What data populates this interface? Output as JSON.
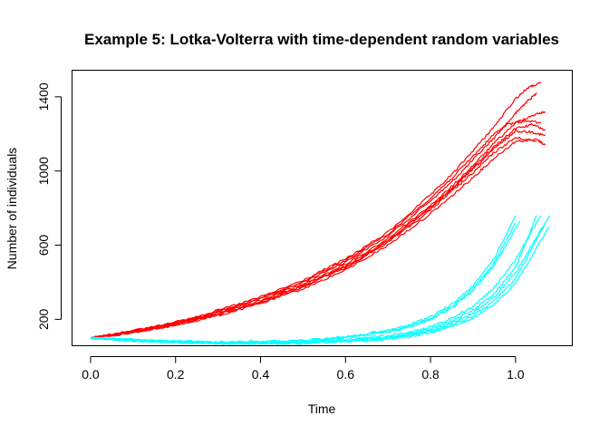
{
  "chart_data": {
    "type": "line",
    "title": "Example 5: Lotka-Volterra with time-dependent random variables",
    "xlabel": "Time",
    "ylabel": "Number of individuals",
    "xlim": [
      -0.0436,
      1.1336
    ],
    "ylim": [
      57.6,
      1543.4
    ],
    "xticks": [
      0.0,
      0.2,
      0.4,
      0.6,
      0.8,
      1.0
    ],
    "xtick_labels": [
      "0.0",
      "0.2",
      "0.4",
      "0.6",
      "0.8",
      "1.0"
    ],
    "yticks": [
      200,
      600,
      1000,
      1400
    ],
    "ytick_labels": [
      "200",
      "600",
      "1000",
      "1400"
    ],
    "grid": false,
    "legend": "none",
    "series_colors": {
      "prey": "#FF0000",
      "predator": "#00FFFF"
    },
    "series": [
      {
        "group": "prey",
        "x": [
          0,
          0.1,
          0.2,
          0.3,
          0.4,
          0.5,
          0.6,
          0.7,
          0.8,
          0.85,
          0.9,
          0.95,
          1.0,
          1.02,
          1.05
        ],
        "y": [
          100,
          135,
          180,
          240,
          310,
          400,
          510,
          650,
          840,
          940,
          1060,
          1180,
          1310,
          1360,
          1420
        ]
      },
      {
        "group": "prey",
        "x": [
          0,
          0.1,
          0.2,
          0.3,
          0.4,
          0.5,
          0.6,
          0.7,
          0.8,
          0.85,
          0.9,
          0.95,
          1.0,
          1.05
        ],
        "y": [
          100,
          130,
          170,
          225,
          290,
          375,
          480,
          615,
          790,
          890,
          990,
          1100,
          1180,
          1160
        ]
      },
      {
        "group": "prey",
        "x": [
          0,
          0.1,
          0.2,
          0.3,
          0.4,
          0.5,
          0.6,
          0.7,
          0.8,
          0.85,
          0.9,
          0.95,
          1.0,
          1.05,
          1.07
        ],
        "y": [
          100,
          128,
          168,
          220,
          285,
          365,
          465,
          600,
          770,
          865,
          965,
          1070,
          1160,
          1170,
          1140
        ]
      },
      {
        "group": "prey",
        "x": [
          0,
          0.1,
          0.2,
          0.3,
          0.4,
          0.5,
          0.6,
          0.7,
          0.8,
          0.85,
          0.9,
          0.95,
          1.0,
          1.03,
          1.06
        ],
        "y": [
          100,
          138,
          185,
          248,
          320,
          410,
          525,
          670,
          870,
          980,
          1110,
          1240,
          1390,
          1450,
          1475
        ]
      },
      {
        "group": "prey",
        "x": [
          0,
          0.1,
          0.2,
          0.3,
          0.4,
          0.5,
          0.6,
          0.7,
          0.8,
          0.85,
          0.9,
          0.95,
          1.0,
          1.04,
          1.07
        ],
        "y": [
          100,
          133,
          176,
          235,
          302,
          390,
          495,
          635,
          815,
          915,
          1030,
          1150,
          1260,
          1300,
          1320
        ]
      },
      {
        "group": "prey",
        "x": [
          0,
          0.1,
          0.2,
          0.3,
          0.4,
          0.5,
          0.6,
          0.7,
          0.8,
          0.85,
          0.9,
          0.95,
          1.0,
          1.04,
          1.07
        ],
        "y": [
          100,
          131,
          173,
          230,
          296,
          382,
          488,
          625,
          805,
          900,
          1010,
          1120,
          1215,
          1210,
          1190
        ]
      },
      {
        "group": "prey",
        "x": [
          0,
          0.1,
          0.2,
          0.3,
          0.4,
          0.5,
          0.6,
          0.7,
          0.8,
          0.85,
          0.9,
          0.95,
          0.98,
          1.02,
          1.06
        ],
        "y": [
          100,
          137,
          182,
          244,
          315,
          405,
          518,
          660,
          855,
          960,
          1080,
          1200,
          1250,
          1270,
          1260
        ]
      },
      {
        "group": "prey",
        "x": [
          0,
          0.1,
          0.2,
          0.3,
          0.4,
          0.5,
          0.6,
          0.7,
          0.8,
          0.85,
          0.9,
          0.95,
          1.0,
          1.04,
          1.07
        ],
        "y": [
          100,
          129,
          172,
          228,
          293,
          378,
          482,
          620,
          800,
          905,
          1020,
          1130,
          1230,
          1250,
          1220
        ]
      },
      {
        "group": "predator",
        "x": [
          0,
          0.1,
          0.2,
          0.3,
          0.4,
          0.5,
          0.6,
          0.7,
          0.75,
          0.8,
          0.85,
          0.9,
          0.95,
          1.0
        ],
        "y": [
          100,
          90,
          82,
          78,
          80,
          88,
          105,
          140,
          170,
          215,
          280,
          380,
          530,
          760
        ]
      },
      {
        "group": "predator",
        "x": [
          0,
          0.1,
          0.2,
          0.3,
          0.4,
          0.5,
          0.6,
          0.7,
          0.75,
          0.8,
          0.85,
          0.9,
          0.95,
          1.01
        ],
        "y": [
          100,
          88,
          80,
          76,
          77,
          84,
          100,
          130,
          160,
          200,
          262,
          355,
          490,
          730
        ]
      },
      {
        "group": "predator",
        "x": [
          0,
          0.1,
          0.2,
          0.3,
          0.4,
          0.5,
          0.6,
          0.7,
          0.75,
          0.8,
          0.85,
          0.9,
          0.95,
          1.0,
          1.05
        ],
        "y": [
          100,
          87,
          78,
          73,
          72,
          76,
          86,
          105,
          122,
          150,
          190,
          250,
          340,
          480,
          760
        ]
      },
      {
        "group": "predator",
        "x": [
          0,
          0.1,
          0.2,
          0.3,
          0.4,
          0.5,
          0.6,
          0.7,
          0.75,
          0.8,
          0.85,
          0.9,
          0.95,
          1.0,
          1.08
        ],
        "y": [
          100,
          86,
          77,
          72,
          70,
          73,
          82,
          98,
          112,
          135,
          170,
          220,
          300,
          420,
          760
        ]
      },
      {
        "group": "predator",
        "x": [
          0,
          0.1,
          0.2,
          0.3,
          0.4,
          0.5,
          0.6,
          0.7,
          0.75,
          0.8,
          0.85,
          0.9,
          0.95,
          1.0,
          1.07
        ],
        "y": [
          100,
          86,
          78,
          73,
          72,
          75,
          84,
          102,
          118,
          142,
          180,
          235,
          320,
          450,
          720
        ]
      },
      {
        "group": "predator",
        "x": [
          0,
          0.1,
          0.2,
          0.3,
          0.4,
          0.5,
          0.6,
          0.7,
          0.75,
          0.8,
          0.85,
          0.9,
          0.95,
          1.0,
          1.06
        ],
        "y": [
          100,
          87,
          79,
          74,
          74,
          79,
          90,
          112,
          132,
          160,
          205,
          270,
          370,
          520,
          760
        ]
      },
      {
        "group": "predator",
        "x": [
          0,
          0.1,
          0.2,
          0.3,
          0.4,
          0.5,
          0.6,
          0.7,
          0.75,
          0.8,
          0.85,
          0.9,
          0.95,
          1.0
        ],
        "y": [
          100,
          89,
          81,
          77,
          78,
          85,
          102,
          135,
          162,
          205,
          268,
          365,
          505,
          720
        ]
      },
      {
        "group": "predator",
        "x": [
          0,
          0.1,
          0.2,
          0.3,
          0.4,
          0.5,
          0.6,
          0.7,
          0.75,
          0.8,
          0.85,
          0.9,
          0.95,
          1.0,
          1.08
        ],
        "y": [
          100,
          85,
          76,
          71,
          69,
          71,
          79,
          94,
          107,
          128,
          160,
          208,
          280,
          395,
          700
        ]
      }
    ]
  }
}
